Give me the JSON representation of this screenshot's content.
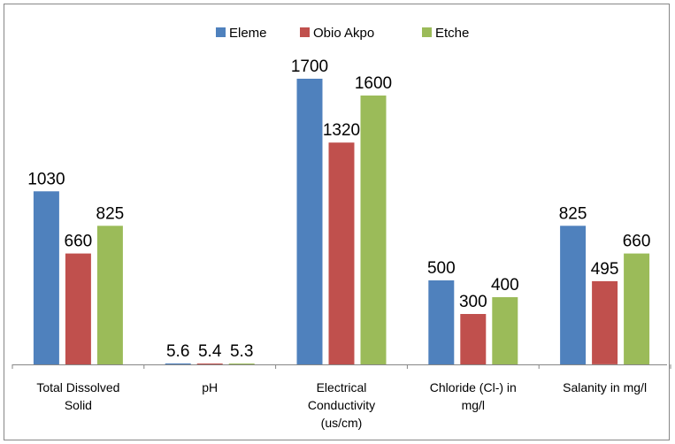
{
  "chart_data": {
    "type": "bar",
    "categories": [
      [
        "Total Dissolved",
        "Solid"
      ],
      [
        "pH"
      ],
      [
        "Electrical",
        "Conductivity",
        "(us/cm)"
      ],
      [
        "Chloride (Cl-) in",
        "mg/l"
      ],
      [
        "Salanity in mg/l"
      ]
    ],
    "series": [
      {
        "name": "Eleme",
        "color": "#4f81bd",
        "values": [
          1030,
          5.6,
          1700,
          500,
          825
        ],
        "labels": [
          "1030",
          "5.6",
          "1700",
          "500",
          "825"
        ]
      },
      {
        "name": "Obio Akpo",
        "color": "#c0504d",
        "values": [
          660,
          5.4,
          1320,
          300,
          495
        ],
        "labels": [
          "660",
          "5.4",
          "1320",
          "300",
          "495"
        ]
      },
      {
        "name": "Etche",
        "color": "#9bbb59",
        "values": [
          825,
          5.3,
          1600,
          400,
          660
        ],
        "labels": [
          "825",
          "5.3",
          "1600",
          "400",
          "660"
        ]
      }
    ],
    "title": "",
    "xlabel": "",
    "ylabel": "",
    "ylim": [
      0,
      1800
    ],
    "grid": false,
    "legend": "top-center"
  }
}
